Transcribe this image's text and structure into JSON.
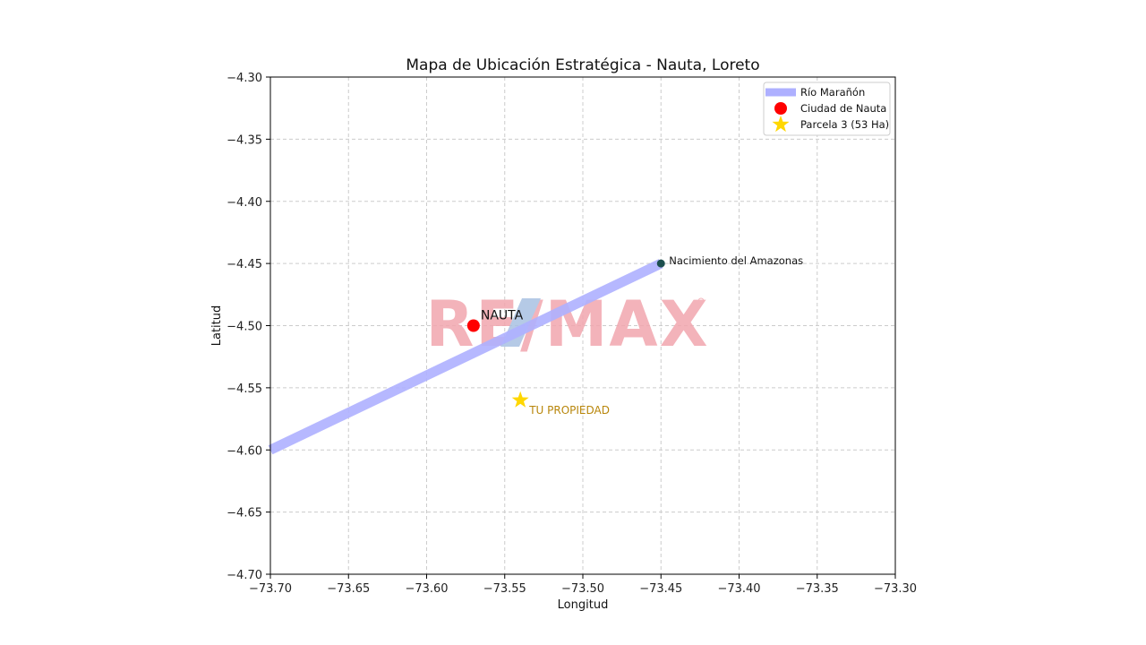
{
  "chart_data": {
    "type": "scatter",
    "title": "Mapa de Ubicación Estratégica - Nauta, Loreto",
    "xlabel": "Longitud",
    "ylabel": "Latitud",
    "xlim": [
      -73.7,
      -73.3
    ],
    "ylim": [
      -4.7,
      -4.3
    ],
    "xticks": [
      -73.7,
      -73.65,
      -73.6,
      -73.55,
      -73.5,
      -73.45,
      -73.4,
      -73.35,
      -73.3
    ],
    "xtick_labels": [
      "−73.70",
      "−73.65",
      "−73.60",
      "−73.55",
      "−73.50",
      "−73.45",
      "−73.40",
      "−73.35",
      "−73.30"
    ],
    "yticks": [
      -4.3,
      -4.35,
      -4.4,
      -4.45,
      -4.5,
      -4.55,
      -4.6,
      -4.65,
      -4.7
    ],
    "ytick_labels": [
      "−4.30",
      "−4.35",
      "−4.40",
      "−4.45",
      "−4.50",
      "−4.55",
      "−4.60",
      "−4.65",
      "−4.70"
    ],
    "grid": true,
    "legend_position": "top-right",
    "series": [
      {
        "name": "Río Marañón",
        "kind": "line",
        "color": "#aeb0ff",
        "x": [
          -73.7,
          -73.45
        ],
        "y": [
          -4.6,
          -4.45
        ]
      },
      {
        "name": "Ciudad de Nauta",
        "kind": "point",
        "marker": "circle",
        "color": "#ff0000",
        "x": [
          -73.57
        ],
        "y": [
          -4.5
        ]
      },
      {
        "name": "Parcela 3 (53 Ha)",
        "kind": "point",
        "marker": "star",
        "color": "#ffd700",
        "x": [
          -73.54
        ],
        "y": [
          -4.56
        ]
      }
    ],
    "markers_unlabeled": [
      {
        "x": -73.45,
        "y": -4.45,
        "color": "#1d4f4f"
      }
    ],
    "annotations": [
      {
        "text": "NAUTA",
        "x": -73.57,
        "y": -4.5,
        "color": "#111111"
      },
      {
        "text": "TU PROPIEDAD",
        "x": -73.54,
        "y": -4.56,
        "color": "#b8860b"
      },
      {
        "text": "Nacimiento del Amazonas",
        "x": -73.45,
        "y": -4.45,
        "color": "#111111"
      }
    ],
    "watermark": {
      "text": "RE/MAX",
      "colors": [
        "#f2a6ae",
        "#a9c1e2"
      ]
    }
  }
}
